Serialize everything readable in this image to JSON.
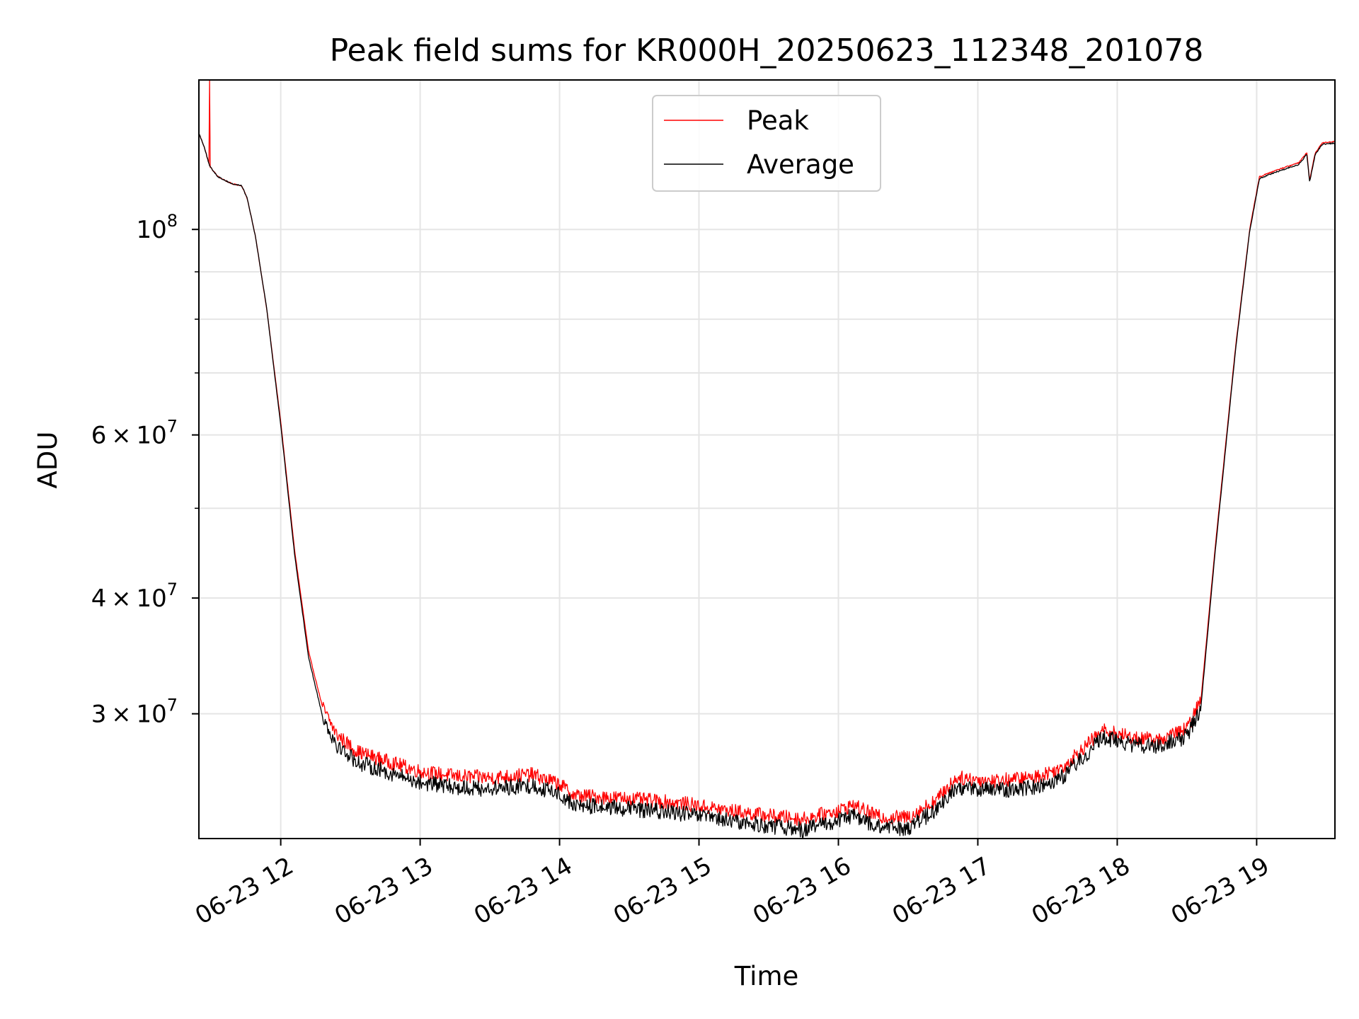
{
  "chart_data": {
    "type": "line",
    "title": "Peak field sums for KR000H_20250623_112348_201078",
    "xlabel": "Time",
    "ylabel": "ADU",
    "yscale": "log",
    "ylim": [
      22000000,
      145000000
    ],
    "xlim_hours": [
      11.413,
      19.5615
    ],
    "grid": true,
    "legend_placement": "upper center",
    "x_ticks": [
      {
        "hour": 12,
        "label": "06-23 12"
      },
      {
        "hour": 13,
        "label": "06-23 13"
      },
      {
        "hour": 14,
        "label": "06-23 14"
      },
      {
        "hour": 15,
        "label": "06-23 15"
      },
      {
        "hour": 16,
        "label": "06-23 16"
      },
      {
        "hour": 17,
        "label": "06-23 17"
      },
      {
        "hour": 18,
        "label": "06-23 18"
      },
      {
        "hour": 19,
        "label": "06-23 19"
      }
    ],
    "y_major_ticks": [
      {
        "value": 100000000,
        "base": "10",
        "exp": "8",
        "mantissa": ""
      },
      {
        "value": 60000000,
        "base": "10",
        "exp": "7",
        "mantissa": "6"
      },
      {
        "value": 40000000,
        "base": "10",
        "exp": "7",
        "mantissa": "4"
      },
      {
        "value": 30000000,
        "base": "10",
        "exp": "7",
        "mantissa": "3"
      }
    ],
    "y_minor_ticks": [
      90000000,
      80000000,
      70000000,
      50000000
    ],
    "series": [
      {
        "name": "Peak",
        "color": "#ff0000",
        "noise": 0.018,
        "spike": {
          "hour": 11.49,
          "value": 145000000
        },
        "points": [
          [
            11.413,
            127000000
          ],
          [
            11.45,
            123000000
          ],
          [
            11.49,
            117000000
          ],
          [
            11.55,
            114000000
          ],
          [
            11.65,
            112000000
          ],
          [
            11.72,
            111500000
          ],
          [
            11.76,
            108000000
          ],
          [
            11.82,
            98000000
          ],
          [
            11.9,
            82000000
          ],
          [
            12.0,
            62000000
          ],
          [
            12.1,
            45000000
          ],
          [
            12.2,
            35000000
          ],
          [
            12.3,
            30500000
          ],
          [
            12.4,
            28500000
          ],
          [
            12.55,
            27300000
          ],
          [
            12.75,
            26700000
          ],
          [
            13.0,
            26000000
          ],
          [
            13.25,
            25700000
          ],
          [
            13.5,
            25600000
          ],
          [
            13.8,
            25800000
          ],
          [
            14.0,
            25200000
          ],
          [
            14.1,
            24500000
          ],
          [
            14.5,
            24300000
          ],
          [
            14.9,
            24000000
          ],
          [
            15.2,
            23600000
          ],
          [
            15.5,
            23300000
          ],
          [
            15.75,
            23100000
          ],
          [
            16.0,
            23600000
          ],
          [
            16.1,
            23900000
          ],
          [
            16.3,
            23200000
          ],
          [
            16.5,
            23200000
          ],
          [
            16.7,
            24200000
          ],
          [
            16.85,
            25600000
          ],
          [
            17.1,
            25400000
          ],
          [
            17.4,
            25600000
          ],
          [
            17.6,
            26200000
          ],
          [
            17.75,
            27500000
          ],
          [
            17.9,
            28800000
          ],
          [
            18.1,
            28300000
          ],
          [
            18.3,
            28100000
          ],
          [
            18.5,
            28900000
          ],
          [
            18.6,
            31000000
          ],
          [
            18.7,
            45000000
          ],
          [
            18.85,
            75000000
          ],
          [
            18.95,
            100000000
          ],
          [
            19.02,
            114000000
          ],
          [
            19.15,
            116000000
          ],
          [
            19.3,
            118000000
          ],
          [
            19.36,
            121000000
          ],
          [
            19.38,
            113000000
          ],
          [
            19.42,
            121000000
          ],
          [
            19.47,
            124000000
          ],
          [
            19.5615,
            124500000
          ]
        ]
      },
      {
        "name": "Average",
        "color": "#000000",
        "noise": 0.02,
        "points": [
          [
            11.413,
            127000000
          ],
          [
            11.45,
            123000000
          ],
          [
            11.49,
            117000000
          ],
          [
            11.55,
            114000000
          ],
          [
            11.65,
            112000000
          ],
          [
            11.72,
            111500000
          ],
          [
            11.76,
            108000000
          ],
          [
            11.82,
            98000000
          ],
          [
            11.9,
            82000000
          ],
          [
            12.0,
            61500000
          ],
          [
            12.1,
            44500000
          ],
          [
            12.2,
            34500000
          ],
          [
            12.3,
            29800000
          ],
          [
            12.4,
            27800000
          ],
          [
            12.55,
            26600000
          ],
          [
            12.75,
            26000000
          ],
          [
            13.0,
            25300000
          ],
          [
            13.25,
            25000000
          ],
          [
            13.5,
            24900000
          ],
          [
            13.8,
            25100000
          ],
          [
            14.0,
            24600000
          ],
          [
            14.1,
            23900000
          ],
          [
            14.5,
            23700000
          ],
          [
            14.9,
            23400000
          ],
          [
            15.2,
            23000000
          ],
          [
            15.5,
            22700000
          ],
          [
            15.75,
            22500000
          ],
          [
            16.0,
            23000000
          ],
          [
            16.1,
            23300000
          ],
          [
            16.3,
            22600000
          ],
          [
            16.5,
            22600000
          ],
          [
            16.7,
            23600000
          ],
          [
            16.85,
            25000000
          ],
          [
            17.1,
            24800000
          ],
          [
            17.4,
            25000000
          ],
          [
            17.6,
            25600000
          ],
          [
            17.75,
            26900000
          ],
          [
            17.9,
            28300000
          ],
          [
            18.1,
            27800000
          ],
          [
            18.3,
            27600000
          ],
          [
            18.5,
            28400000
          ],
          [
            18.6,
            30500000
          ],
          [
            18.7,
            44500000
          ],
          [
            18.85,
            74500000
          ],
          [
            18.95,
            99500000
          ],
          [
            19.02,
            113500000
          ],
          [
            19.15,
            115500000
          ],
          [
            19.3,
            117500000
          ],
          [
            19.36,
            120500000
          ],
          [
            19.38,
            112500000
          ],
          [
            19.42,
            120500000
          ],
          [
            19.47,
            123500000
          ],
          [
            19.5615,
            124000000
          ]
        ]
      }
    ]
  }
}
